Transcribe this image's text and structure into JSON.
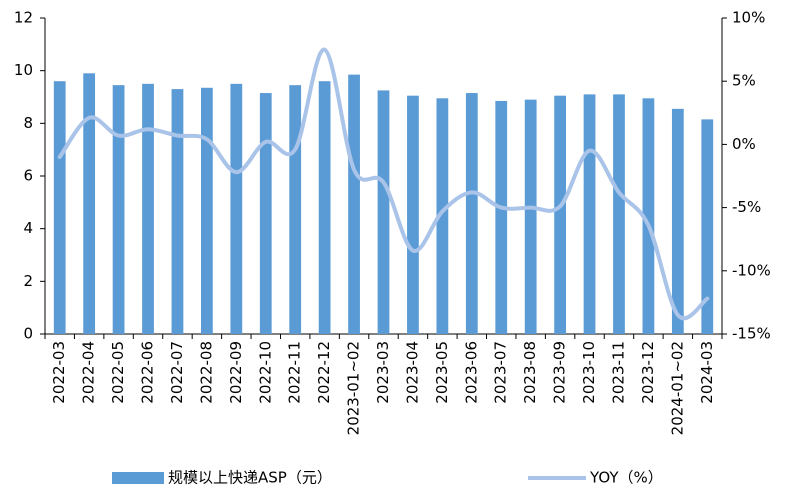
{
  "chart_data": {
    "type": "bar_line",
    "categories": [
      "2022-03",
      "2022-04",
      "2022-05",
      "2022-06",
      "2022-07",
      "2022-08",
      "2022-09",
      "2022-10",
      "2022-11",
      "2022-12",
      "2023-01~02",
      "2023-03",
      "2023-04",
      "2023-05",
      "2023-06",
      "2023-07",
      "2023-08",
      "2023-09",
      "2023-10",
      "2023-11",
      "2023-12",
      "2024-01~02",
      "2024-03"
    ],
    "series": [
      {
        "name": "规模以上快递ASP（元）",
        "type": "bar",
        "color": "#5b9bd5",
        "values": [
          9.6,
          9.9,
          9.45,
          9.5,
          9.3,
          9.35,
          9.5,
          9.15,
          9.45,
          9.6,
          9.85,
          9.25,
          9.05,
          8.95,
          9.15,
          8.85,
          8.9,
          9.05,
          9.1,
          9.1,
          8.95,
          8.55,
          8.15
        ]
      },
      {
        "name": "YOY（%）",
        "type": "line",
        "axis": "y2",
        "color": "#a9c4e8",
        "values": [
          -1.0,
          2.1,
          0.7,
          1.2,
          0.7,
          0.4,
          -2.2,
          0.2,
          -0.4,
          7.5,
          -2.0,
          -3.0,
          -8.4,
          -5.3,
          -3.8,
          -5.0,
          -5.0,
          -4.9,
          -0.5,
          -3.8,
          -6.4,
          -13.5,
          -12.2
        ]
      }
    ],
    "ylim": [
      0,
      12
    ],
    "yticks": [
      0,
      2,
      4,
      6,
      8,
      10,
      12
    ],
    "y2lim": [
      -15,
      10
    ],
    "y2ticks": [
      {
        "value": -15,
        "label": "-15%"
      },
      {
        "value": -10,
        "label": "-10%"
      },
      {
        "value": -5,
        "label": "-5%"
      },
      {
        "value": 0,
        "label": "0%"
      },
      {
        "value": 5,
        "label": "5%"
      },
      {
        "value": 10,
        "label": "10%"
      }
    ]
  }
}
